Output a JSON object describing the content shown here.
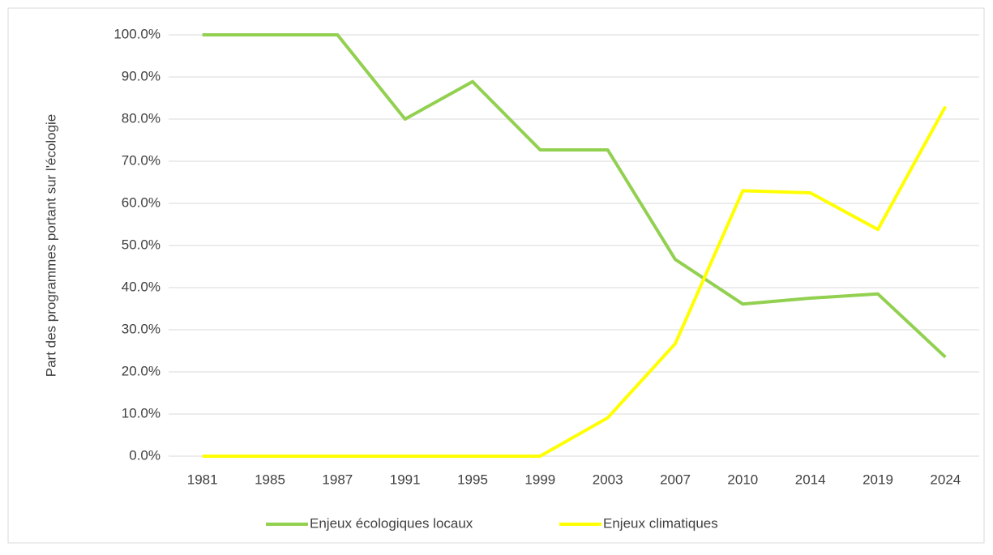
{
  "chart_data": {
    "type": "line",
    "y_label": "Part des programmes portant sur l'écologie",
    "categories": [
      "1981",
      "1985",
      "1987",
      "1991",
      "1995",
      "1999",
      "2003",
      "2007",
      "2010",
      "2014",
      "2019",
      "2024"
    ],
    "series": [
      {
        "name": "Enjeux écologiques locaux",
        "color": "#92d050",
        "values": [
          100,
          100,
          100,
          80,
          88.9,
          72.7,
          72.7,
          46.7,
          36.1,
          37.5,
          38.5,
          23.5
        ]
      },
      {
        "name": "Enjeux climatiques",
        "color": "#ffff00",
        "values": [
          0,
          0,
          0,
          0,
          0,
          0,
          9.1,
          26.7,
          63,
          62.5,
          53.8,
          83
        ]
      }
    ],
    "ylim": [
      0,
      100
    ],
    "yticks": [
      {
        "value": 0,
        "label": "0.0%"
      },
      {
        "value": 10,
        "label": "10.0%"
      },
      {
        "value": 20,
        "label": "20.0%"
      },
      {
        "value": 30,
        "label": "30.0%"
      },
      {
        "value": 40,
        "label": "40.0%"
      },
      {
        "value": 50,
        "label": "50.0%"
      },
      {
        "value": 60,
        "label": "60.0%"
      },
      {
        "value": 70,
        "label": "70.0%"
      },
      {
        "value": 80,
        "label": "80.0%"
      },
      {
        "value": 90,
        "label": "90.0%"
      },
      {
        "value": 100,
        "label": "100.0%"
      }
    ],
    "grid": true,
    "legend": "bottom"
  }
}
